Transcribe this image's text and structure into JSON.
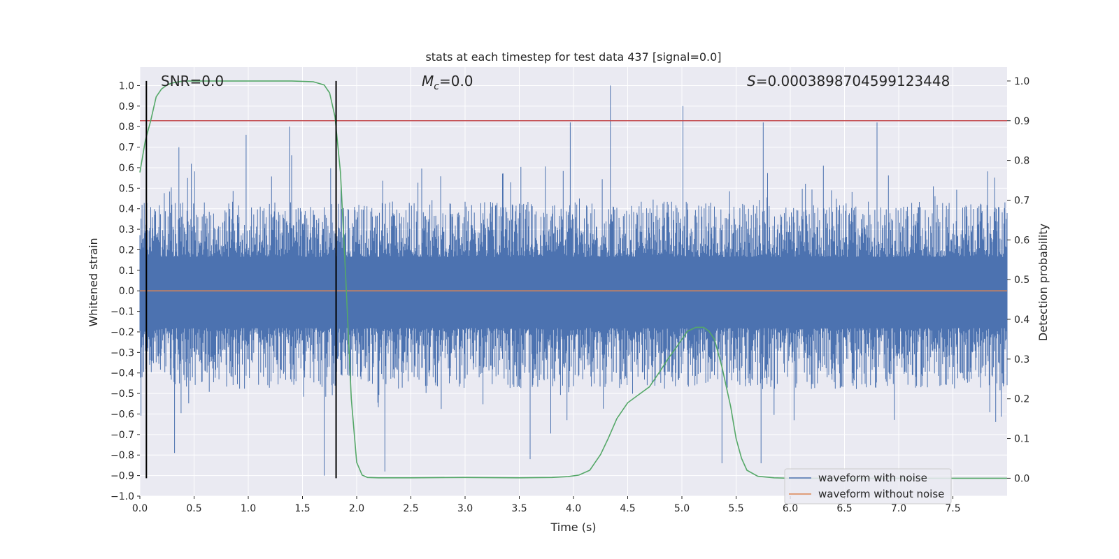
{
  "chart_data": {
    "type": "line",
    "title": "stats at each timestep for test data 437 [signal=0.0]",
    "xlabel": "Time (s)",
    "ylabel_left": "Whitened strain",
    "ylabel_right": "Detection probability",
    "xlim": [
      0.0,
      8.0
    ],
    "ylim_left": [
      -1.0,
      1.09
    ],
    "ylim_right": [
      -0.045,
      1.035
    ],
    "x_ticks": [
      "0.0",
      "0.5",
      "1.0",
      "1.5",
      "2.0",
      "2.5",
      "3.0",
      "3.5",
      "4.0",
      "4.5",
      "5.0",
      "5.5",
      "6.0",
      "6.5",
      "7.0",
      "7.5"
    ],
    "x_tick_values": [
      0.0,
      0.5,
      1.0,
      1.5,
      2.0,
      2.5,
      3.0,
      3.5,
      4.0,
      4.5,
      5.0,
      5.5,
      6.0,
      6.5,
      7.0,
      7.5
    ],
    "y_left_ticks": [
      "1.0",
      "0.9",
      "0.8",
      "0.7",
      "0.6",
      "0.5",
      "0.4",
      "0.3",
      "0.2",
      "0.1",
      "0.0",
      "−0.1",
      "−0.2",
      "−0.3",
      "−0.4",
      "−0.5",
      "−0.6",
      "−0.7",
      "−0.8",
      "−0.9",
      "−1.0"
    ],
    "y_left_tick_values": [
      1.0,
      0.9,
      0.8,
      0.7,
      0.6,
      0.5,
      0.4,
      0.3,
      0.2,
      0.1,
      0.0,
      -0.1,
      -0.2,
      -0.3,
      -0.4,
      -0.5,
      -0.6,
      -0.7,
      -0.8,
      -0.9,
      -1.0
    ],
    "y_right_ticks": [
      "1.0",
      "0.9",
      "0.8",
      "0.7",
      "0.6",
      "0.5",
      "0.4",
      "0.3",
      "0.2",
      "0.1",
      "0.0"
    ],
    "y_right_tick_values": [
      1.0,
      0.9,
      0.8,
      0.7,
      0.6,
      0.5,
      0.4,
      0.3,
      0.2,
      0.1,
      0.0
    ],
    "annotations": {
      "snr": "SNR=0.0",
      "mc_symbol": "M",
      "mc_sub": "c",
      "mc_value": "=0.0",
      "s_symbol": "S",
      "s_value": "=0.0003898704599123448"
    },
    "legend": {
      "position": "lower right",
      "entries": [
        {
          "label": "waveform with noise",
          "color": "#4c72b0"
        },
        {
          "label": "waveform without noise",
          "color": "#dd8452"
        }
      ]
    },
    "threshold_probability": 0.9,
    "vertical_markers": [
      0.06,
      1.81
    ],
    "noise_envelope": {
      "typical_top": 0.3,
      "typical_bottom": -0.33,
      "peaks": [
        {
          "x": 4.34,
          "y": 1.0
        },
        {
          "x": 5.01,
          "y": 0.9
        },
        {
          "x": 3.97,
          "y": 0.82
        },
        {
          "x": 5.75,
          "y": 0.82
        },
        {
          "x": 6.8,
          "y": 0.82
        },
        {
          "x": 1.38,
          "y": 0.8
        },
        {
          "x": 0.36,
          "y": 0.7
        },
        {
          "x": 0.98,
          "y": 0.76
        }
      ],
      "troughs": [
        {
          "x": 1.7,
          "y": -0.9
        },
        {
          "x": 2.26,
          "y": -0.88
        },
        {
          "x": 5.37,
          "y": -0.84
        },
        {
          "x": 5.73,
          "y": -0.84
        },
        {
          "x": 0.32,
          "y": -0.79
        },
        {
          "x": 3.6,
          "y": -0.82
        }
      ]
    },
    "series": [
      {
        "name": "waveform without noise",
        "color": "#dd8452",
        "axis": "left",
        "x": [
          0.0,
          8.0
        ],
        "y": [
          0.0,
          0.0
        ]
      },
      {
        "name": "detection probability",
        "color": "#55a868",
        "axis": "right",
        "x": [
          0.0,
          0.05,
          0.1,
          0.15,
          0.2,
          0.25,
          0.3,
          0.4,
          0.6,
          1.0,
          1.4,
          1.6,
          1.7,
          1.75,
          1.8,
          1.85,
          1.9,
          1.95,
          2.0,
          2.05,
          2.1,
          2.2,
          2.5,
          3.0,
          3.5,
          3.8,
          3.95,
          4.05,
          4.15,
          4.2,
          4.25,
          4.32,
          4.4,
          4.5,
          4.6,
          4.7,
          4.8,
          4.87,
          4.95,
          5.05,
          5.13,
          5.2,
          5.25,
          5.3,
          5.37,
          5.45,
          5.5,
          5.55,
          5.6,
          5.7,
          5.85,
          6.0,
          7.0,
          8.0
        ],
        "y": [
          0.77,
          0.85,
          0.9,
          0.96,
          0.98,
          0.99,
          0.995,
          1.0,
          1.0,
          1.0,
          1.0,
          0.998,
          0.99,
          0.97,
          0.91,
          0.77,
          0.5,
          0.2,
          0.04,
          0.008,
          0.002,
          0.001,
          0.001,
          0.002,
          0.001,
          0.002,
          0.004,
          0.008,
          0.02,
          0.04,
          0.06,
          0.1,
          0.15,
          0.19,
          0.21,
          0.23,
          0.27,
          0.3,
          0.33,
          0.37,
          0.38,
          0.38,
          0.37,
          0.35,
          0.28,
          0.18,
          0.1,
          0.05,
          0.02,
          0.005,
          0.001,
          0.0,
          0.0,
          0.0
        ]
      }
    ]
  },
  "colors": {
    "plot_bg": "#eaeaf2",
    "grid": "#ffffff",
    "noise": "#4c72b0",
    "clean": "#dd8452",
    "probability": "#55a868",
    "threshold": "#c44e52",
    "marker": "#000000",
    "text": "#262626"
  }
}
